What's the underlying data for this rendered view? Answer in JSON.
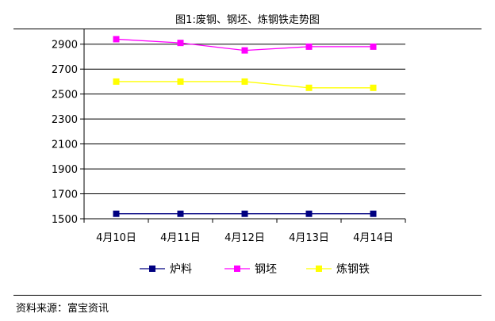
{
  "page": {
    "title": "图1:废钢、钢坯、炼钢铁走势图",
    "source": "资料来源：富宝资讯"
  },
  "chart_data": {
    "type": "line",
    "title": "图1:废钢、钢坯、炼钢铁走势图",
    "categories": [
      "4月10日",
      "4月11日",
      "4月12日",
      "4月13日",
      "4月14日"
    ],
    "series": [
      {
        "name": "炉料",
        "color": "#000080",
        "values": [
          1540,
          1540,
          1540,
          1540,
          1540
        ]
      },
      {
        "name": "钢坯",
        "color": "#ff00ff",
        "values": [
          2940,
          2910,
          2850,
          2880,
          2880
        ]
      },
      {
        "name": "炼钢铁",
        "color": "#ffff00",
        "values": [
          2600,
          2600,
          2600,
          2550,
          2550
        ]
      }
    ],
    "yticks": [
      1500,
      1700,
      1900,
      2100,
      2300,
      2500,
      2700,
      2900
    ],
    "ylim": [
      1500,
      3000
    ],
    "grid": true,
    "legend_position": "bottom"
  }
}
